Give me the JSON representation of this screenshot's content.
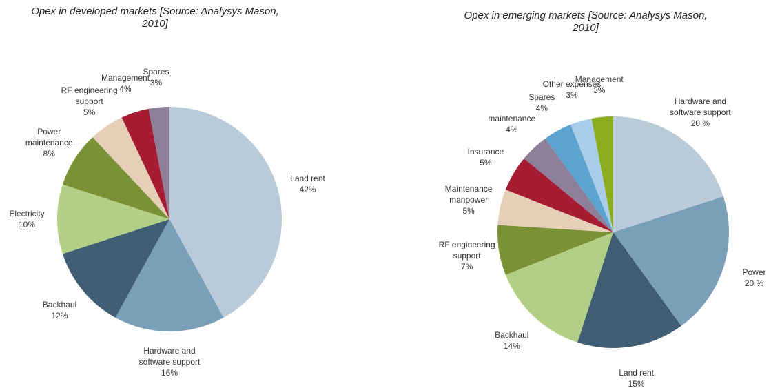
{
  "chart_data": [
    {
      "type": "pie",
      "title": "Opex in developed markets [Source: Analysys Mason, 2010]",
      "categories": [
        "Land rent",
        "Hardware and software support",
        "Backhaul",
        "Electricity",
        "Power maintenance",
        "RF engineering support",
        "Management",
        "Spares"
      ],
      "values": [
        42,
        16,
        12,
        10,
        8,
        5,
        4,
        3
      ],
      "value_labels": [
        "42%",
        "16%",
        "12%",
        "10%",
        "8%",
        "5%",
        "4%",
        "3%"
      ],
      "colors": [
        "#b9cad9",
        "#7a9fb8",
        "#3f5e74",
        "#b3cf85",
        "#7a9136",
        "#e6cfb8",
        "#a61c33",
        "#8e7f99"
      ]
    },
    {
      "type": "pie",
      "title": "Opex in emerging markets [Source: Analysys Mason, 2010]",
      "categories": [
        "Hardware and software support",
        "Power",
        "Land rent",
        "Backhaul",
        "RF engineering support",
        "Maintenance manpower",
        "Insurance",
        "maintenance",
        "Spares",
        "Other expenses",
        "Management"
      ],
      "values": [
        20,
        20,
        15,
        14,
        7,
        5,
        5,
        4,
        4,
        3,
        3
      ],
      "value_labels": [
        "20 %",
        "20 %",
        "15%",
        "14%",
        "7%",
        "5%",
        "5%",
        "4%",
        "4%",
        "3%",
        "3%"
      ],
      "colors": [
        "#b9cad9",
        "#7a9fb8",
        "#3f5e74",
        "#b3cf85",
        "#7a9136",
        "#e6cfb8",
        "#a61c33",
        "#8e7f99",
        "#5ba3d0",
        "#a9cde8",
        "#8aac1e"
      ]
    }
  ]
}
